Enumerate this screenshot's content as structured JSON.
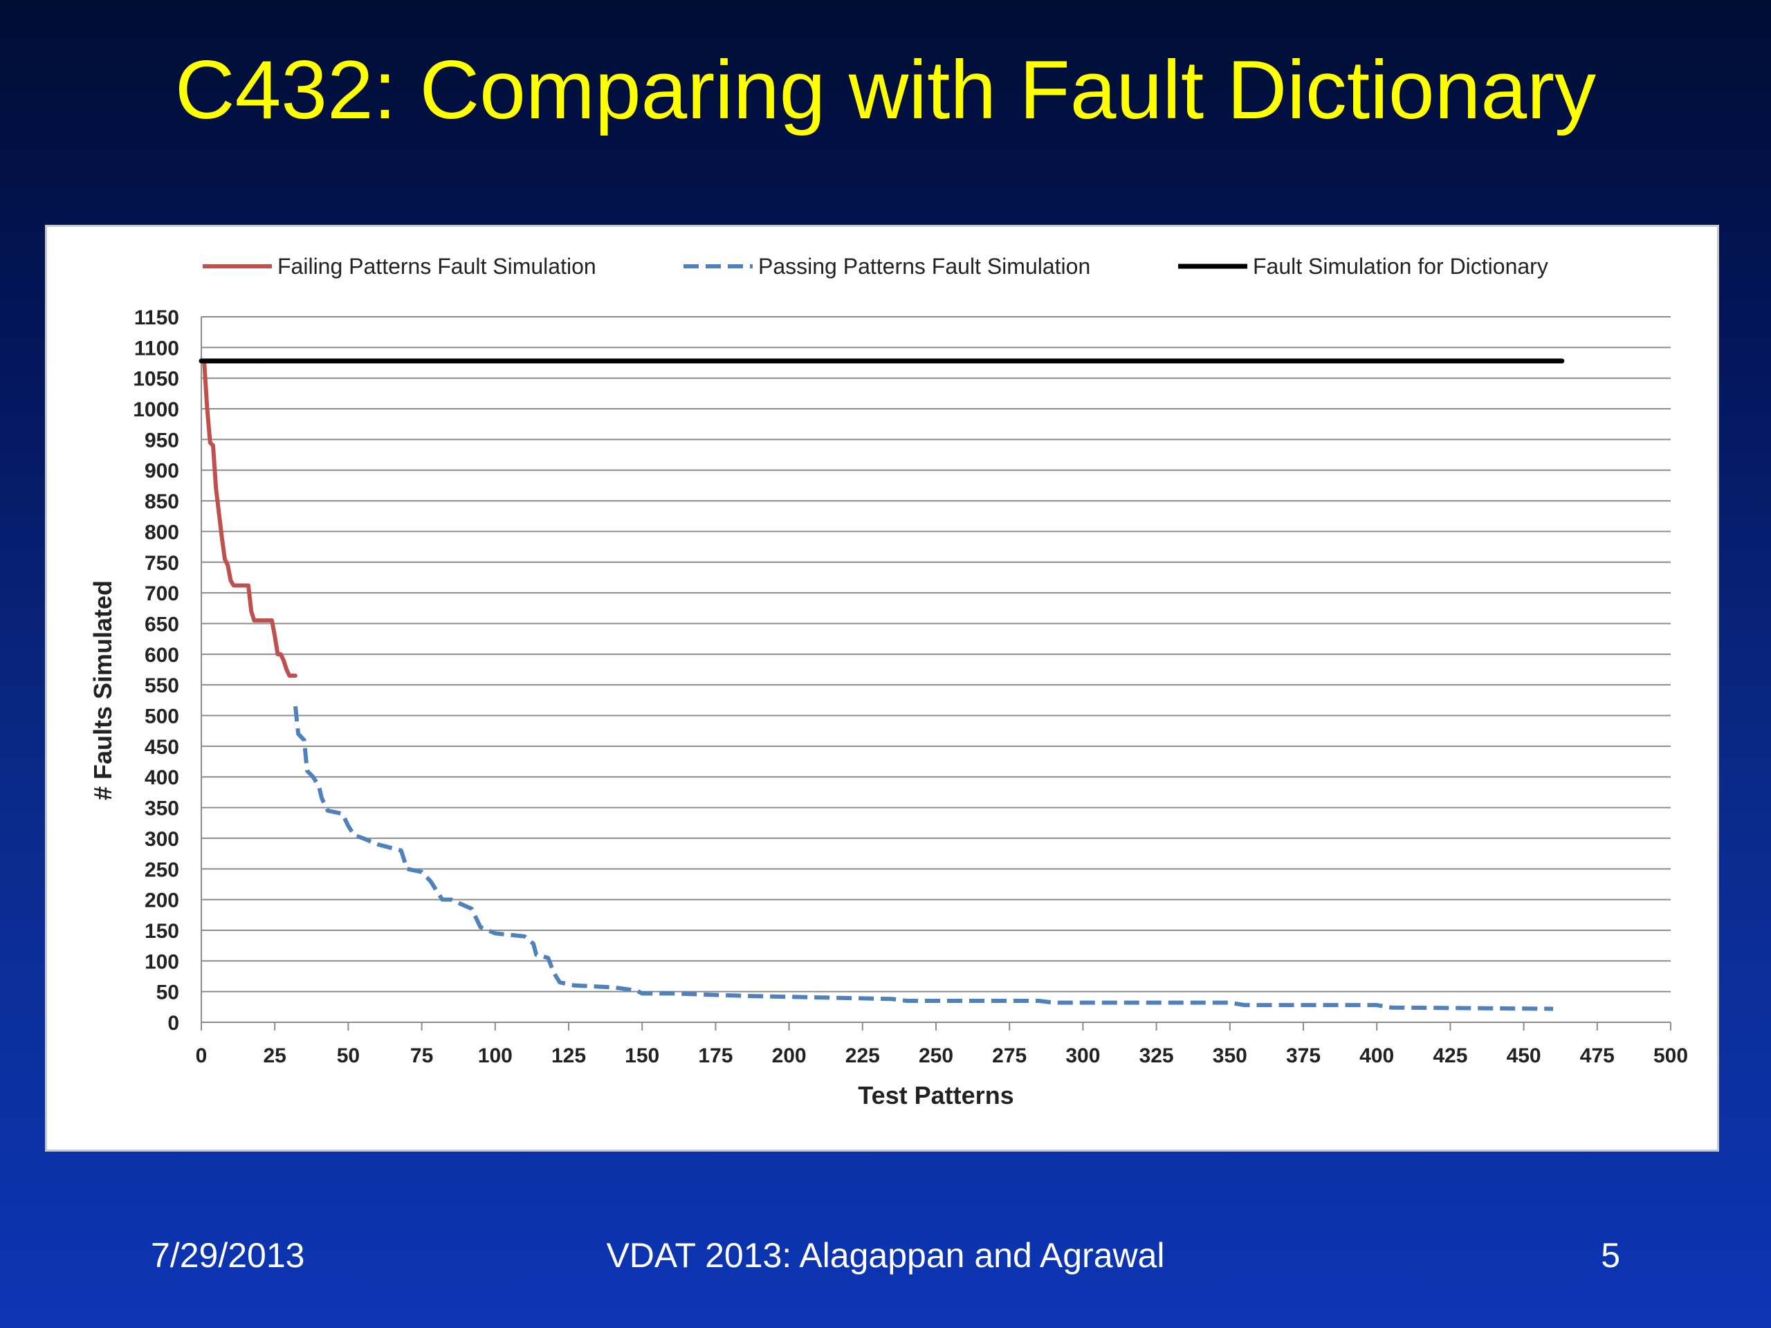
{
  "slide": {
    "title": "C432: Comparing with Fault Dictionary",
    "footer_date": "7/29/2013",
    "footer_center": "VDAT 2013: Alagappan and Agrawal",
    "page_number": "5"
  },
  "chart_data": {
    "type": "line",
    "xlabel": "Test Patterns",
    "ylabel": "# Faults Simulated",
    "xlim": [
      0,
      500
    ],
    "ylim": [
      0,
      1150
    ],
    "xticks": [
      0,
      25,
      50,
      75,
      100,
      125,
      150,
      175,
      200,
      225,
      250,
      275,
      300,
      325,
      350,
      375,
      400,
      425,
      450,
      475,
      500
    ],
    "yticks": [
      0,
      50,
      100,
      150,
      200,
      250,
      300,
      350,
      400,
      450,
      500,
      550,
      600,
      650,
      700,
      750,
      800,
      850,
      900,
      950,
      1000,
      1050,
      1100,
      1150
    ],
    "grid": "horizontal",
    "legend_position": "top",
    "series": [
      {
        "name": "Failing Patterns Fault Simulation",
        "color": "#c0504d",
        "style": "solid",
        "x": [
          1,
          2,
          3,
          4,
          5,
          6,
          7,
          8,
          9,
          10,
          11,
          12,
          13,
          14,
          15,
          16,
          17,
          18,
          19,
          20,
          21,
          22,
          23,
          24,
          25,
          26,
          27,
          28,
          29,
          30,
          31,
          32
        ],
        "y": [
          1075,
          1000,
          945,
          940,
          870,
          830,
          790,
          755,
          745,
          720,
          712,
          712,
          712,
          712,
          712,
          712,
          670,
          655,
          655,
          655,
          655,
          655,
          655,
          655,
          630,
          600,
          600,
          590,
          575,
          565,
          565,
          565
        ]
      },
      {
        "name": "Passing Patterns Fault Simulation",
        "color": "#4f81bd",
        "style": "dashed",
        "x": [
          32,
          33,
          35,
          36,
          38,
          40,
          41,
          43,
          48,
          50,
          52,
          55,
          60,
          68,
          70,
          75,
          78,
          82,
          85,
          92,
          95,
          100,
          110,
          113,
          114,
          118,
          120,
          122,
          127,
          140,
          148,
          150,
          160,
          185,
          215,
          235,
          240,
          285,
          290,
          350,
          355,
          400,
          405,
          460
        ],
        "y": [
          515,
          470,
          460,
          410,
          400,
          385,
          365,
          345,
          340,
          320,
          305,
          300,
          290,
          280,
          250,
          245,
          230,
          200,
          200,
          185,
          155,
          145,
          140,
          128,
          110,
          105,
          80,
          65,
          60,
          57,
          52,
          47,
          47,
          43,
          40,
          38,
          35,
          35,
          32,
          32,
          28,
          28,
          24,
          22
        ]
      },
      {
        "name": "Fault Simulation  for Dictionary",
        "color": "#000000",
        "style": "solid",
        "x": [
          0,
          463
        ],
        "y": [
          1078,
          1078
        ]
      }
    ]
  }
}
